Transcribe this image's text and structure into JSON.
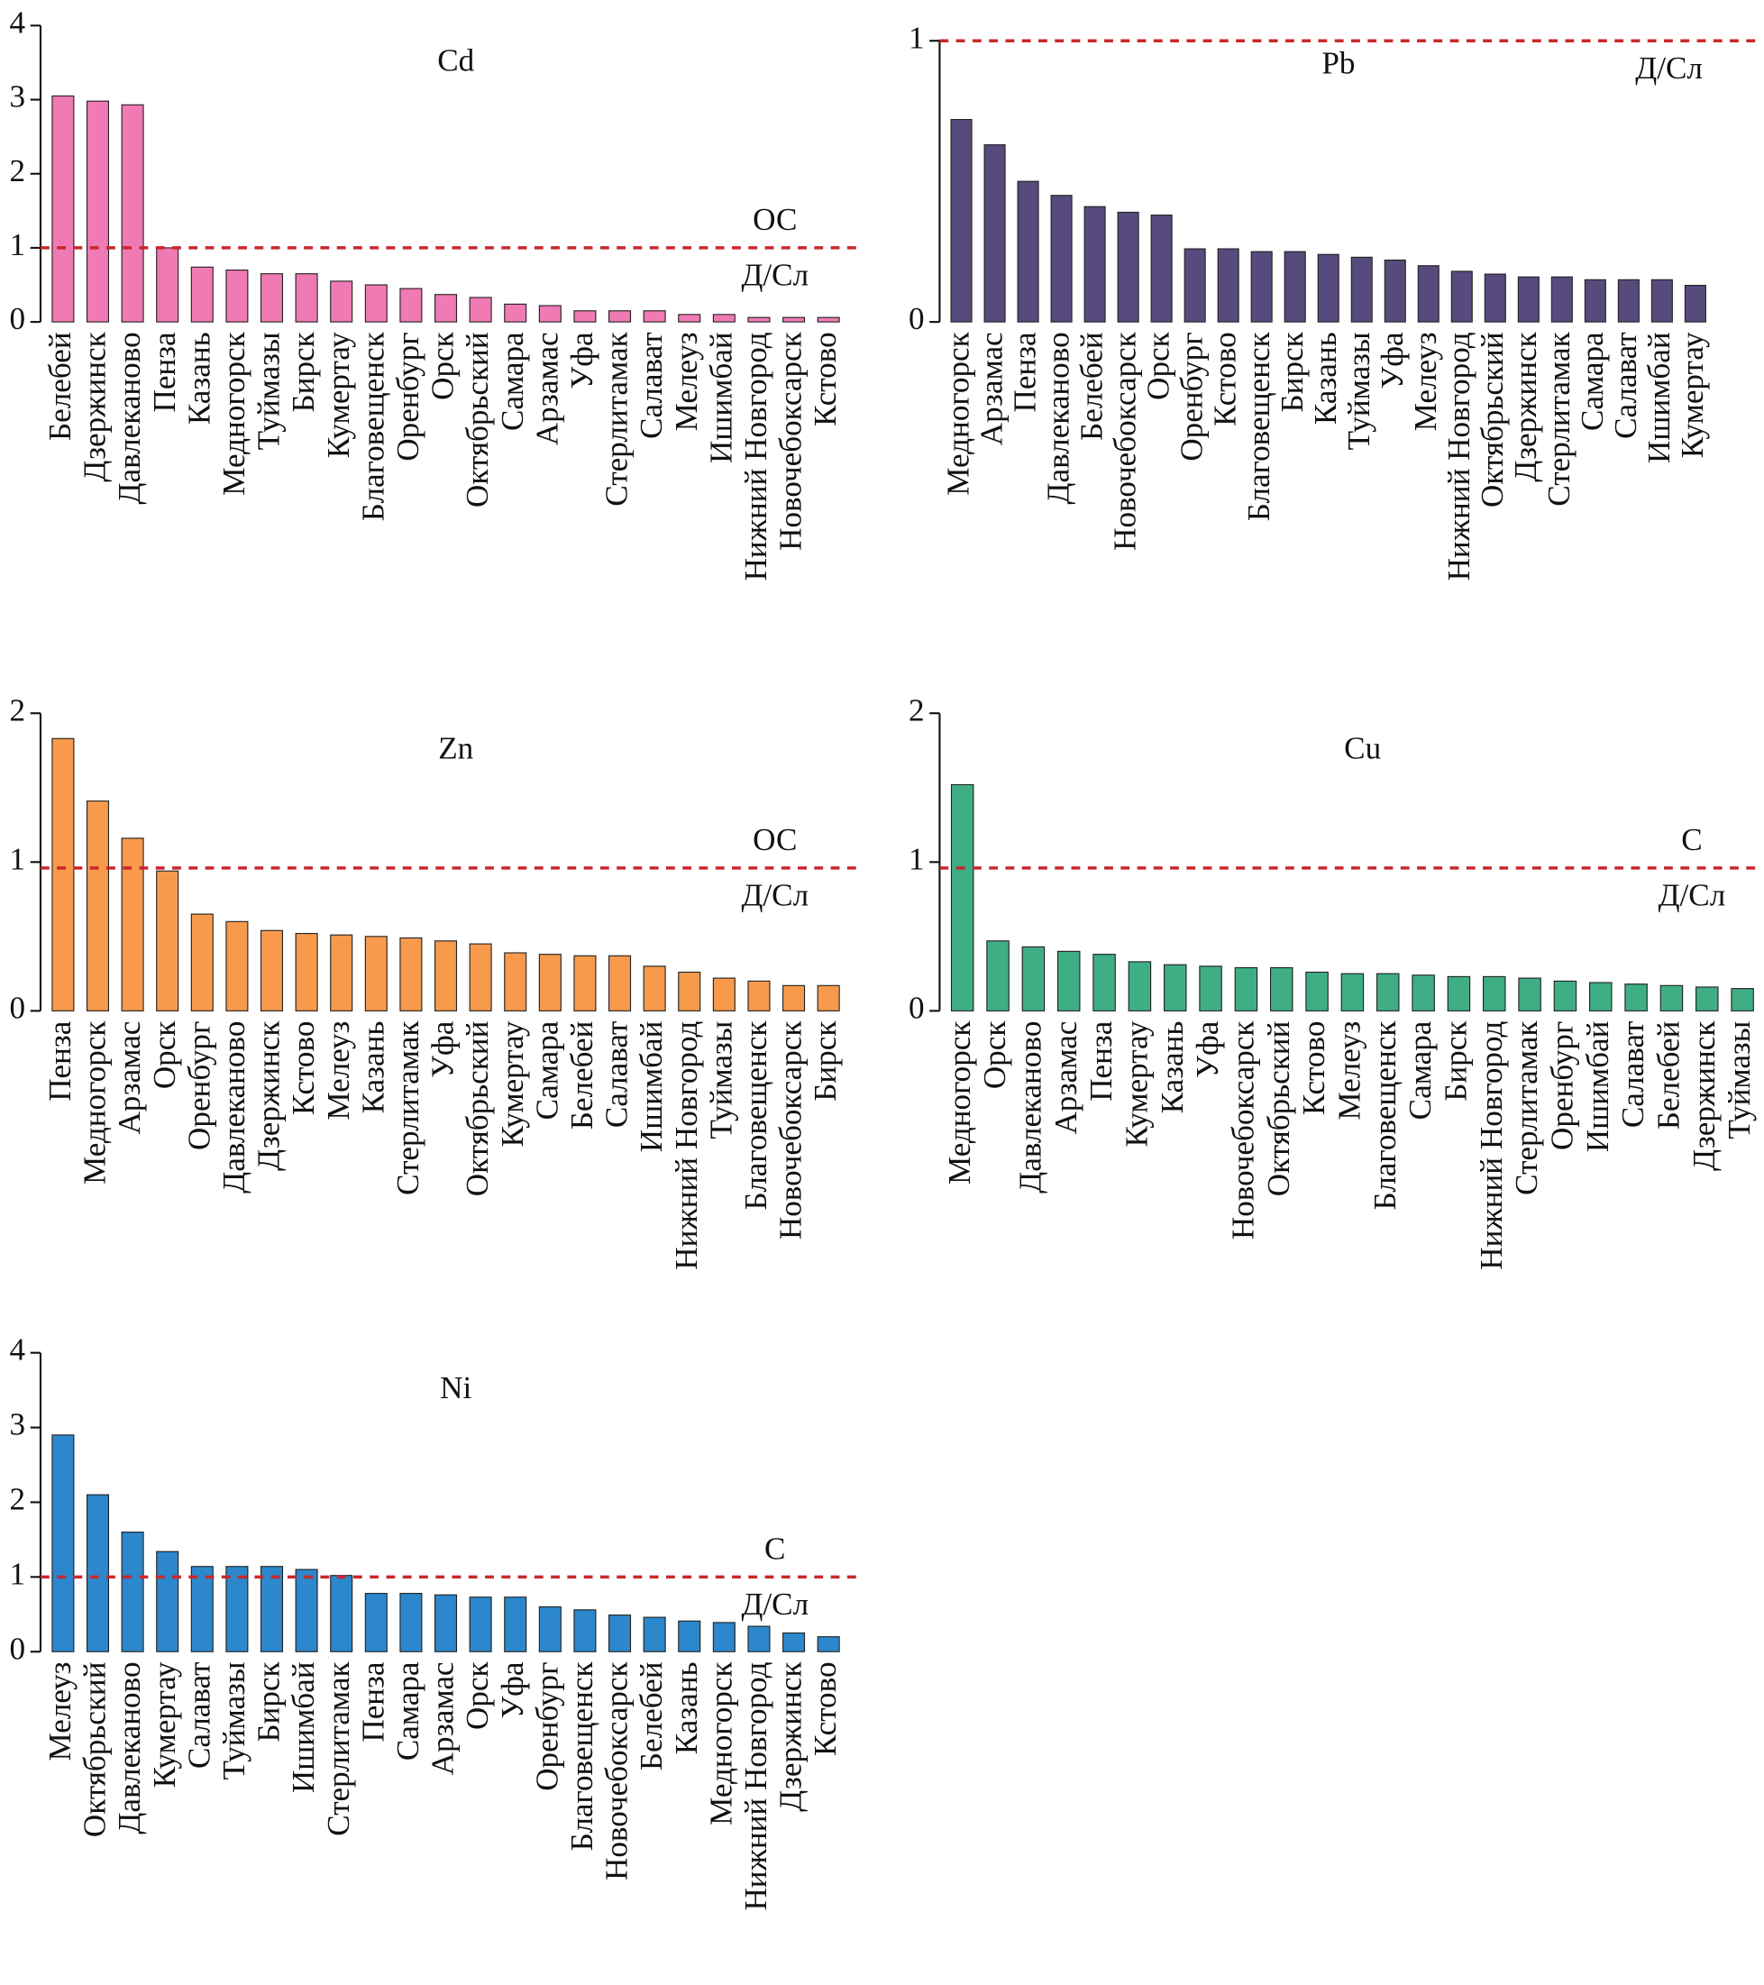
{
  "chart_data": [
    {
      "type": "bar",
      "title": "Cd",
      "color": "#f07ab4",
      "ylim": [
        0,
        4
      ],
      "yticks": [
        0,
        1,
        2,
        3,
        4
      ],
      "reference_line": {
        "value": 1,
        "label_above": "ОС",
        "label_below": "Д/Сл"
      },
      "categories": [
        "Белебей",
        "Дзержинск",
        "Давлеканово",
        "Пенза",
        "Казань",
        "Медногорск",
        "Туймазы",
        "Бирск",
        "Кумертау",
        "Благовещенск",
        "Оренбург",
        "Орск",
        "Октябрьский",
        "Самара",
        "Арзамас",
        "Уфа",
        "Стерлитамак",
        "Салават",
        "Мелеуз",
        "Ишимбай",
        "Нижний Новгород",
        "Новочебоксарск",
        "Кстово"
      ],
      "values": [
        3.05,
        2.98,
        2.93,
        1.0,
        0.74,
        0.7,
        0.65,
        0.65,
        0.55,
        0.5,
        0.45,
        0.37,
        0.33,
        0.24,
        0.22,
        0.15,
        0.15,
        0.15,
        0.1,
        0.1,
        0.06,
        0.06,
        0.06
      ]
    },
    {
      "type": "bar",
      "title": "Pb",
      "color": "#574a7d",
      "ylim": [
        0,
        1
      ],
      "yticks": [
        0,
        1
      ],
      "reference_line": {
        "value": 1,
        "label_below": "Д/Сл"
      },
      "categories": [
        "Медногорск",
        "Арзамас",
        "Пенза",
        "Давлеканово",
        "Белебей",
        "Новочебоксарск",
        "Орск",
        "Оренбург",
        "Кстово",
        "Благовещенск",
        "Бирск",
        "Казань",
        "Туймазы",
        "Уфа",
        "Мелеуз",
        "Нижний Новгород",
        "Октябрьский",
        "Дзержинск",
        "Стерлитамак",
        "Самара",
        "Салават",
        "Ишимбай",
        "Кумертау"
      ],
      "values": [
        0.72,
        0.63,
        0.5,
        0.45,
        0.41,
        0.39,
        0.38,
        0.26,
        0.26,
        0.25,
        0.25,
        0.24,
        0.23,
        0.22,
        0.2,
        0.18,
        0.17,
        0.16,
        0.16,
        0.15,
        0.15,
        0.15,
        0.13
      ]
    },
    {
      "type": "bar",
      "title": "Zn",
      "color": "#f79a4c",
      "ylim": [
        0,
        2
      ],
      "yticks": [
        0,
        1,
        2
      ],
      "reference_line": {
        "value": 0.96,
        "label_above": "ОС",
        "label_below": "Д/Сл"
      },
      "categories": [
        "Пенза",
        "Медногорск",
        "Арзамас",
        "Орск",
        "Оренбург",
        "Давлеканово",
        "Дзержинск",
        "Кстово",
        "Мелеуз",
        "Казань",
        "Стерлитамак",
        "Уфа",
        "Октябрьский",
        "Кумертау",
        "Самара",
        "Белебей",
        "Салават",
        "Ишимбай",
        "Нижний Новгород",
        "Туймазы",
        "Благовещенск",
        "Новочебоксарск",
        "Бирск"
      ],
      "values": [
        1.83,
        1.41,
        1.16,
        0.94,
        0.65,
        0.6,
        0.54,
        0.52,
        0.51,
        0.5,
        0.49,
        0.47,
        0.45,
        0.39,
        0.38,
        0.37,
        0.37,
        0.3,
        0.26,
        0.22,
        0.2,
        0.17,
        0.17
      ]
    },
    {
      "type": "bar",
      "title": "Cu",
      "color": "#3fae85",
      "ylim": [
        0,
        2
      ],
      "yticks": [
        0,
        1,
        2
      ],
      "reference_line": {
        "value": 0.96,
        "label_above": "С",
        "label_below": "Д/Сл"
      },
      "categories": [
        "Медногорск",
        "Орск",
        "Давлеканово",
        "Арзамас",
        "Пенза",
        "Кумертау",
        "Казань",
        "Уфа",
        "Новочебоксарск",
        "Октябрьский",
        "Кстово",
        "Мелеуз",
        "Благовещенск",
        "Самара",
        "Бирск",
        "Нижний Новгород",
        "Стерлитамак",
        "Оренбург",
        "Ишимбай",
        "Салават",
        "Белебей",
        "Дзержинск",
        "Туймазы"
      ],
      "values": [
        1.52,
        0.47,
        0.43,
        0.4,
        0.38,
        0.33,
        0.31,
        0.3,
        0.29,
        0.29,
        0.26,
        0.25,
        0.25,
        0.24,
        0.23,
        0.23,
        0.22,
        0.2,
        0.19,
        0.18,
        0.17,
        0.16,
        0.15
      ]
    },
    {
      "type": "bar",
      "title": "Ni",
      "color": "#2c87cc",
      "ylim": [
        0,
        4
      ],
      "yticks": [
        0,
        1,
        2,
        3,
        4
      ],
      "reference_line": {
        "value": 1,
        "label_above": "С",
        "label_below": "Д/Сл"
      },
      "categories": [
        "Мелеуз",
        "Октябрьский",
        "Давлеканово",
        "Кумертау",
        "Салават",
        "Туймазы",
        "Бирск",
        "Ишимбай",
        "Стерлитамак",
        "Пенза",
        "Самара",
        "Арзамас",
        "Орск",
        "Уфа",
        "Оренбург",
        "Благовещенск",
        "Новочебоксарск",
        "Белебей",
        "Казань",
        "Медногорск",
        "Нижний Новгород",
        "Дзержинск",
        "Кстово"
      ],
      "values": [
        2.9,
        2.1,
        1.6,
        1.34,
        1.14,
        1.14,
        1.14,
        1.1,
        1.02,
        0.78,
        0.78,
        0.76,
        0.73,
        0.73,
        0.6,
        0.56,
        0.49,
        0.46,
        0.41,
        0.39,
        0.34,
        0.25,
        0.2
      ]
    }
  ]
}
